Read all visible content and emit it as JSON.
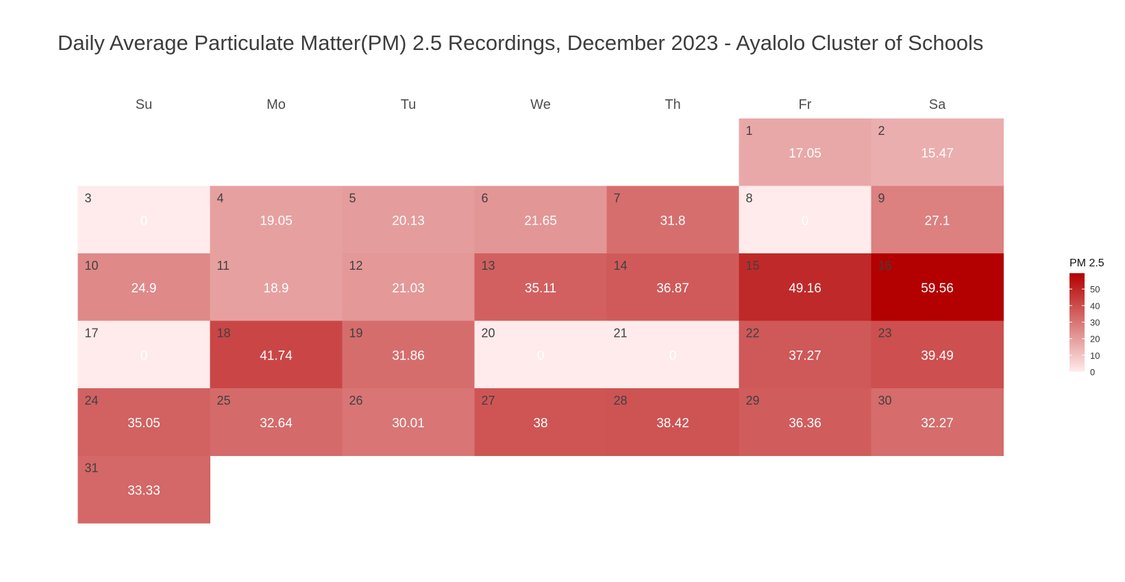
{
  "chart_data": {
    "type": "heatmap",
    "title": "Daily Average Particulate Matter(PM) 2.5 Recordings, December 2023 - Ayalolo Cluster of Schools",
    "weekdays": [
      "Su",
      "Mo",
      "Tu",
      "We",
      "Th",
      "Fr",
      "Sa"
    ],
    "first_weekday_index": 5,
    "days": [
      1,
      2,
      3,
      4,
      5,
      6,
      7,
      8,
      9,
      10,
      11,
      12,
      13,
      14,
      15,
      16,
      17,
      18,
      19,
      20,
      21,
      22,
      23,
      24,
      25,
      26,
      27,
      28,
      29,
      30,
      31
    ],
    "values": [
      17.05,
      15.47,
      0,
      19.05,
      20.13,
      21.65,
      31.8,
      0,
      27.1,
      24.9,
      18.9,
      21.03,
      35.11,
      36.87,
      49.16,
      59.56,
      0,
      41.74,
      31.86,
      0,
      0,
      37.27,
      39.49,
      35.05,
      32.64,
      30.01,
      38,
      38.42,
      36.36,
      32.27,
      33.33
    ],
    "value_labels": [
      "17.05",
      "15.47",
      "0",
      "19.05",
      "20.13",
      "21.65",
      "31.8",
      "0",
      "27.1",
      "24.9",
      "18.9",
      "21.03",
      "35.11",
      "36.87",
      "49.16",
      "59.56",
      "0",
      "41.74",
      "31.86",
      "0",
      "0",
      "37.27",
      "39.49",
      "35.05",
      "32.64",
      "30.01",
      "38",
      "38.42",
      "36.36",
      "32.27",
      "33.33"
    ],
    "color_scale": {
      "low": "#ffebeb",
      "high": "#b30000",
      "domain": [
        0,
        59.56
      ]
    },
    "legend": {
      "title": "PM 2.5",
      "ticks": [
        0,
        10,
        20,
        30,
        40,
        50
      ],
      "position": "right"
    }
  }
}
